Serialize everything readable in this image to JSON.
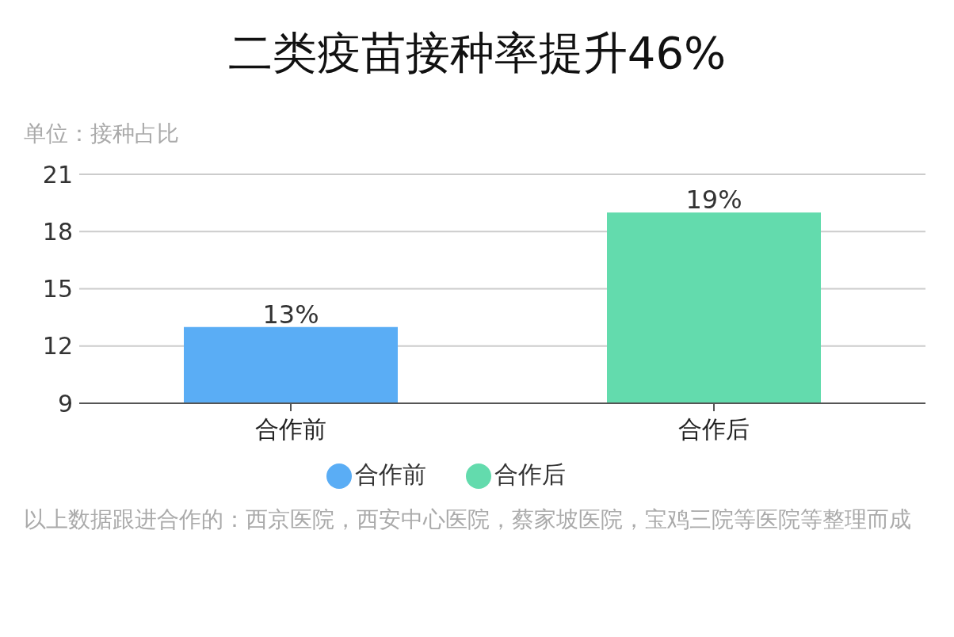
{
  "chart_data": {
    "type": "bar",
    "title": "二类疫苗接种率提升46%",
    "ylabel": "单位：接种占比",
    "categories": [
      "合作前",
      "合作后"
    ],
    "series": [
      {
        "name": "合作前",
        "color": "#5aadf5",
        "values": [
          13,
          null
        ],
        "value_labels": [
          "13%",
          null
        ]
      },
      {
        "name": "合作后",
        "color": "#63dbad",
        "values": [
          null,
          19
        ],
        "value_labels": [
          null,
          "19%"
        ]
      }
    ],
    "ylim": [
      9,
      21
    ],
    "yticks": [
      9,
      12,
      15,
      18,
      21
    ],
    "grid": "y",
    "legend": "bottom",
    "annotations": [
      "以上数据跟进合作的：西京医院，西安中心医院，蔡家坡医院，宝鸡三院等医院等整理而成"
    ]
  }
}
